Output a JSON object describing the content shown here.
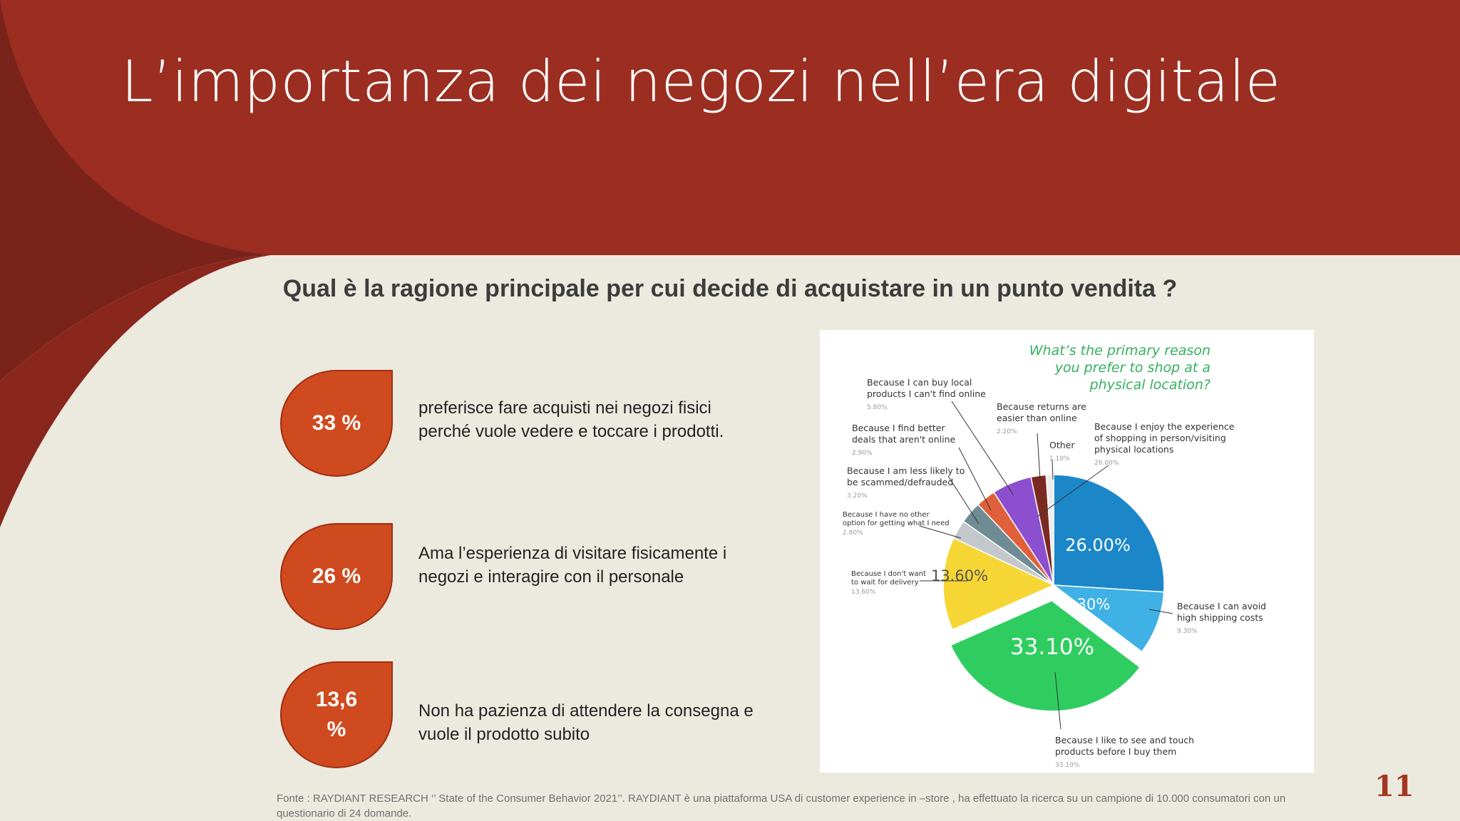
{
  "slide": {
    "title": "L’importanza dei negozi nell’era digitale",
    "question": "Qual è la ragione principale per cui decide di acquistare in un punto vendita ?",
    "page_number": "11",
    "colors": {
      "header_red": "#9a2d21",
      "accent_orange": "#cf4a1e",
      "background": "#ece9df"
    }
  },
  "stats": [
    {
      "value": "33 %",
      "text": "preferisce fare acquisti nei negozi fisici perché vuole vedere e toccare i prodotti."
    },
    {
      "value": "26 %",
      "text": "Ama l’esperienza di visitare fisicamente i negozi e interagire con il personale"
    },
    {
      "value": "13,6 %",
      "text": "Non  ha pazienza di attendere la consegna e vuole il prodotto subito"
    }
  ],
  "source_note": "Fonte : RAYDIANT RESEARCH ‘’ State of the Consumer Behavior 2021’’. RAYDIANT è una piattaforma USA di customer experience in –store , ha effettuato la ricerca su un campione di 10.000 consumatori con un questionario di 24 domande.",
  "chart_data": {
    "type": "pie",
    "title": "What’s the primary reason you prefer to shop at a physical location?",
    "title_lines": [
      "What’s the primary reason",
      "you prefer to shop at a",
      "physical location?"
    ],
    "unit": "%",
    "slices": [
      {
        "name": "Because I enjoy the experience of shopping in person/visiting physical locations",
        "label_lines": [
          "Because I enjoy the experience",
          "of shopping in person/visiting",
          "physical locations"
        ],
        "value": 26.0,
        "display": "26.00%",
        "color": "#1b87c9"
      },
      {
        "name": "Because I can avoid high shipping costs",
        "label_lines": [
          "Because I can avoid",
          "high shipping costs"
        ],
        "value": 9.3,
        "display": "9.30%",
        "color": "#3fb1e5"
      },
      {
        "name": "Because I like to see and touch products before I buy them",
        "label_lines": [
          "Because I like to see and touch",
          "products before I buy them"
        ],
        "value": 33.1,
        "display": "33.10%",
        "color": "#2fcd5f"
      },
      {
        "name": "Because I don't want to wait for delivery",
        "label_lines": [
          "Because I don't want",
          "to wait for delivery"
        ],
        "value": 13.6,
        "display": "13.60%",
        "color": "#f6d634"
      },
      {
        "name": "Because I have no other option for getting what I need",
        "label_lines": [
          "Because I have no other",
          "option for getting what I need"
        ],
        "value": 2.8,
        "display": "2.80%",
        "color": "#c3c8cc"
      },
      {
        "name": "Because I am less likely to be scammed/defrauded",
        "label_lines": [
          "Because I am less likely to",
          "be scammed/defrauded"
        ],
        "value": 3.2,
        "display": "3.20%",
        "color": "#6f8c94"
      },
      {
        "name": "Because I find better deals that aren't online",
        "label_lines": [
          "Because I find better",
          "deals that aren't online"
        ],
        "value": 2.9,
        "display": "2.90%",
        "color": "#e0603b"
      },
      {
        "name": "Because I can buy local products I can't find online",
        "label_lines": [
          "Because I can buy local",
          "products I can't find online"
        ],
        "value": 5.8,
        "display": "5.80%",
        "color": "#8b4fcf"
      },
      {
        "name": "Because returns are easier than online",
        "label_lines": [
          "Because returns are",
          "easier than online"
        ],
        "value": 2.2,
        "display": "2.20%",
        "color": "#7a2a22"
      },
      {
        "name": "Other",
        "label_lines": [
          "Other"
        ],
        "value": 1.1,
        "display": "1.10%",
        "color": "#ececec"
      }
    ],
    "inner_labels": [
      "26.00%",
      "9.30%",
      "33.10%",
      "13.60%"
    ],
    "legend": "callout labels around pie"
  }
}
